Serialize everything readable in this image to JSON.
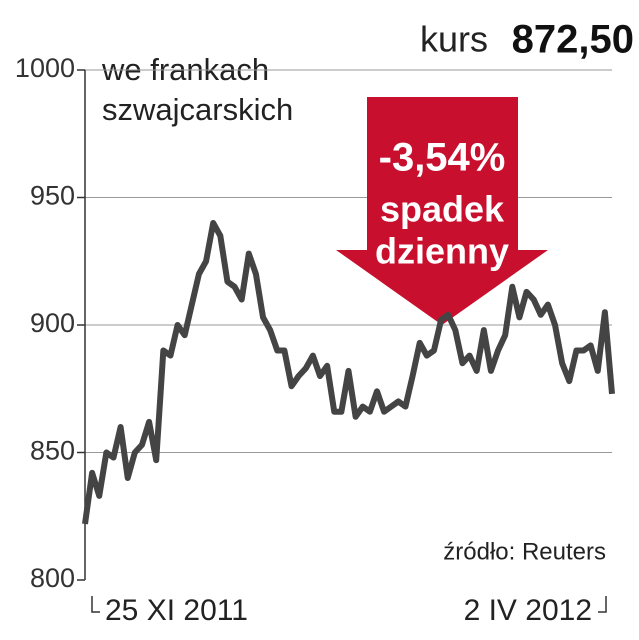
{
  "chart_data": {
    "type": "line",
    "title": [
      "we frankach",
      "szwajcarskich"
    ],
    "headline": {
      "label": "kurs",
      "value": "872,50"
    },
    "annotation": {
      "change": "-3,54%",
      "text": [
        "spadek",
        "dzienny"
      ],
      "color": "#c8102e"
    },
    "source": "źródło: Reuters",
    "categories": [
      "25 XI 2011",
      null,
      null,
      null,
      null,
      null,
      null,
      null,
      null,
      null,
      null,
      null,
      null,
      null,
      null,
      null,
      null,
      null,
      null,
      null,
      null,
      null,
      null,
      null,
      null,
      null,
      null,
      null,
      null,
      null,
      null,
      null,
      null,
      null,
      null,
      null,
      null,
      null,
      null,
      null,
      null,
      null,
      null,
      null,
      null,
      null,
      null,
      null,
      null,
      null,
      null,
      null,
      null,
      null,
      null,
      null,
      null,
      null,
      null,
      null,
      null,
      null,
      null,
      null,
      null,
      null,
      null,
      null,
      null,
      null,
      null,
      null,
      null,
      null,
      "2 IV 2012"
    ],
    "series": [
      {
        "color": "#444444",
        "values": [
          822,
          842,
          833,
          850,
          848,
          860,
          840,
          850,
          853,
          862,
          847,
          890,
          888,
          900,
          896,
          908,
          920,
          925,
          940,
          935,
          917,
          915,
          910,
          928,
          920,
          903,
          898,
          890,
          890,
          876,
          880,
          883,
          888,
          880,
          884,
          866,
          866,
          882,
          864,
          868,
          866,
          874,
          866,
          868,
          870,
          868,
          880,
          893,
          888,
          890,
          902,
          904,
          898,
          885,
          888,
          882,
          898,
          882,
          890,
          896,
          915,
          903,
          913,
          910,
          904,
          908,
          900,
          885,
          878,
          890,
          890,
          892,
          882,
          905,
          873
        ]
      }
    ],
    "ylim": [
      800,
      1000
    ],
    "yticks": [
      800,
      850,
      900,
      950,
      1000
    ],
    "grid": true
  }
}
